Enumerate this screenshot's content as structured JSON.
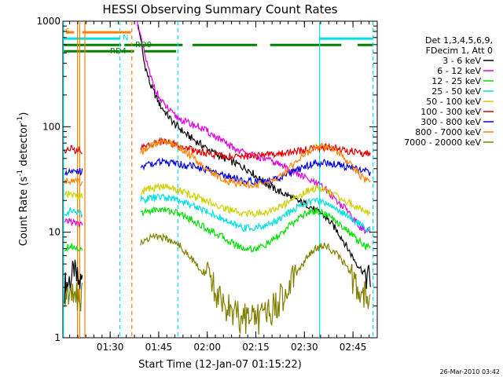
{
  "chart_data": {
    "type": "line",
    "title": "HESSI Observing Summary Count Rates",
    "xlabel": "Start Time (12-Jan-07 01:15:22)",
    "ylabel_main": "Count Rate (s",
    "ylabel_sup1": "-1",
    "ylabel_mid": " detector",
    "ylabel_sup2": "-1",
    "ylabel_end": ")",
    "footer": "26-Mar-2010 03:42",
    "x_scale": "time (minutes after 01:15:22)",
    "xlim": [
      0,
      97.1
    ],
    "y_scale": "log",
    "ylim": [
      1,
      1000
    ],
    "x_ticks": [
      {
        "label": "01:30",
        "value": 14.6
      },
      {
        "label": "01:45",
        "value": 29.6
      },
      {
        "label": "02:00",
        "value": 44.6
      },
      {
        "label": "02:15",
        "value": 59.6
      },
      {
        "label": "02:30",
        "value": 74.6
      },
      {
        "label": "02:45",
        "value": 89.6
      }
    ],
    "y_ticks": [
      {
        "label": "1",
        "value": 1
      },
      {
        "label": "10",
        "value": 10
      },
      {
        "label": "100",
        "value": 100
      },
      {
        "label": "1000",
        "value": 1000
      }
    ],
    "legend": {
      "placement": "right",
      "header": [
        "Det 1,3,4,5,6,9,",
        "FDecim 1, Att 0"
      ]
    },
    "series": [
      {
        "name": "3 - 6 keV",
        "color": "#000000",
        "segments": [
          {
            "x": [
              0.5,
              2,
              3.5,
              5,
              6
            ],
            "y": [
              3.0,
              3.5,
              4.0,
              3.2,
              3.5
            ]
          },
          {
            "x": [
              23,
              24,
              25,
              27,
              30,
              34,
              38,
              42,
              46,
              50,
              54,
              58,
              60,
              62,
              66,
              70,
              72,
              74,
              76,
              78,
              80,
              82,
              84,
              86,
              88,
              90,
              92,
              93.5,
              95
            ],
            "y": [
              950,
              700,
              420,
              250,
              160,
              110,
              85,
              70,
              58,
              50,
              44,
              38,
              33,
              30,
              25,
              22,
              20,
              19,
              18,
              16,
              15,
              13,
              11,
              9,
              7,
              5.5,
              4.5,
              4.0,
              3.5
            ]
          }
        ]
      },
      {
        "name": "6 - 12 keV",
        "color": "#e000e0",
        "segments": [
          {
            "x": [
              0.5,
              2,
              4,
              6
            ],
            "y": [
              12,
              13,
              12,
              12
            ]
          },
          {
            "x": [
              23,
              24,
              25,
              27,
              30,
              34,
              38,
              42,
              46,
              50,
              54,
              58,
              62,
              66,
              70,
              72,
              74,
              76,
              78,
              80,
              82,
              84,
              86,
              88,
              90,
              92,
              95
            ],
            "y": [
              1000,
              700,
              520,
              300,
              180,
              130,
              110,
              100,
              85,
              70,
              60,
              54,
              50,
              45,
              40,
              36,
              34,
              31,
              29,
              27,
              24,
              21,
              18,
              16,
              13,
              11,
              10
            ]
          }
        ]
      },
      {
        "name": "12 - 25 keV",
        "color": "#00e000",
        "segments": [
          {
            "x": [
              0.5,
              2,
              4,
              6
            ],
            "y": [
              7,
              7.5,
              7.2,
              7
            ]
          },
          {
            "x": [
              24,
              27,
              30,
              33,
              36,
              40,
              44,
              48,
              52,
              56,
              60,
              64,
              68,
              72,
              75,
              78,
              81,
              84,
              87,
              90,
              93,
              95
            ],
            "y": [
              15,
              16,
              16.5,
              16,
              15,
              13,
              11,
              9.5,
              8,
              7,
              7,
              8,
              10,
              13,
              15,
              16,
              15,
              13,
              11,
              9,
              7.5,
              7
            ]
          }
        ]
      },
      {
        "name": "25 - 50 keV",
        "color": "#00e0e0",
        "segments": [
          {
            "x": [
              0.5,
              2,
              4,
              6
            ],
            "y": [
              15,
              16,
              15.5,
              15
            ]
          },
          {
            "x": [
              24,
              27,
              30,
              33,
              36,
              40,
              44,
              48,
              52,
              56,
              60,
              64,
              68,
              72,
              75,
              78,
              81,
              84,
              87,
              90,
              93,
              95
            ],
            "y": [
              20,
              21,
              21.5,
              21,
              20,
              18,
              16,
              14,
              12,
              11,
              11,
              12,
              14,
              17,
              19,
              20,
              19,
              17,
              15,
              13,
              11,
              10.5
            ]
          }
        ]
      },
      {
        "name": "50 - 100 keV",
        "color": "#d0d000",
        "segments": [
          {
            "x": [
              0.5,
              2,
              4,
              6
            ],
            "y": [
              22,
              23,
              22,
              22
            ]
          },
          {
            "x": [
              24,
              27,
              30,
              33,
              36,
              40,
              44,
              48,
              52,
              56,
              60,
              64,
              68,
              72,
              75,
              78,
              81,
              84,
              87,
              90,
              93,
              95
            ],
            "y": [
              24,
              26,
              27,
              26.5,
              25,
              22,
              20,
              18,
              16,
              15,
              15,
              16,
              18,
              21,
              24,
              26,
              25,
              23,
              20,
              18,
              16,
              15
            ]
          }
        ]
      },
      {
        "name": "100 - 300 keV",
        "color": "#e00000",
        "segments": [
          {
            "x": [
              0.5,
              2,
              4,
              6
            ],
            "y": [
              58,
              62,
              60,
              60
            ]
          },
          {
            "x": [
              24,
              27,
              30,
              33,
              36,
              40,
              44,
              48,
              52,
              56,
              60,
              64,
              68,
              72,
              75,
              78,
              81,
              84,
              87,
              90,
              93,
              95
            ],
            "y": [
              62,
              68,
              72,
              70,
              66,
              60,
              56,
              54,
              52,
              52,
              53,
              54,
              56,
              58,
              60,
              62,
              64,
              63,
              60,
              58,
              56,
              55
            ]
          }
        ]
      },
      {
        "name": "300 - 800 keV",
        "color": "#0000e0",
        "segments": [
          {
            "x": [
              0.5,
              2,
              4,
              6
            ],
            "y": [
              37,
              39,
              38,
              38
            ]
          },
          {
            "x": [
              24,
              27,
              30,
              33,
              36,
              40,
              44,
              48,
              52,
              56,
              60,
              64,
              68,
              72,
              75,
              78,
              81,
              84,
              87,
              90,
              93,
              95
            ],
            "y": [
              42,
              44,
              46,
              45,
              44,
              42,
              40,
              36,
              33,
              31,
              30,
              31,
              34,
              38,
              42,
              45,
              46,
              44,
              42,
              40,
              38,
              37
            ]
          }
        ]
      },
      {
        "name": "800 - 7000 keV",
        "color": "#ff8000",
        "segments": [
          {
            "x": [
              0.5,
              2,
              4,
              6
            ],
            "y": [
              30,
              31,
              30,
              30
            ]
          },
          {
            "x": [
              24,
              27,
              30,
              33,
              36,
              40,
              44,
              48,
              52,
              56,
              60,
              64,
              68,
              72,
              75,
              78,
              81,
              84,
              87,
              90,
              93,
              95
            ],
            "y": [
              55,
              65,
              72,
              70,
              64,
              52,
              40,
              33,
              30,
              28,
              28,
              30,
              36,
              46,
              56,
              63,
              65,
              60,
              50,
              40,
              32,
              29
            ]
          }
        ]
      },
      {
        "name": "7000 - 20000 keV",
        "color": "#808000",
        "segments": [
          {
            "x": [
              0.5,
              2,
              4,
              6
            ],
            "y": [
              2.5,
              2.8,
              2.6,
              2.5
            ]
          },
          {
            "x": [
              24,
              27,
              30,
              33,
              36,
              40,
              44,
              48,
              52,
              56,
              60,
              64,
              68,
              72,
              75,
              78,
              81,
              84,
              87,
              90,
              93,
              95
            ],
            "y": [
              8,
              9,
              9,
              8.5,
              7.5,
              5.5,
              4,
              2.5,
              1.7,
              1.5,
              1.5,
              1.7,
              2.5,
              4,
              5.5,
              7,
              7.5,
              6.5,
              5,
              3.5,
              2.5,
              2
            ]
          }
        ]
      }
    ],
    "markers": [
      {
        "label": "S",
        "color": "#ff8000",
        "x": 1,
        "y_top": true
      },
      {
        "label": "N",
        "color": "#00e0e0",
        "x": 18
      },
      {
        "label": "RD0",
        "color": "#008000",
        "x": 24
      },
      {
        "label": "RD4",
        "color": "#008000",
        "x": 15
      }
    ],
    "vertical_lines": [
      {
        "x": 4.5,
        "color": "#ff8000",
        "style": "solid"
      },
      {
        "x": 5.2,
        "color": "#ff8000",
        "style": "solid"
      },
      {
        "x": 6.8,
        "color": "#ff8000",
        "style": "solid"
      },
      {
        "x": 0.2,
        "color": "#00e0e0",
        "style": "solid"
      },
      {
        "x": 17.6,
        "color": "#00e0e0",
        "style": "dashed"
      },
      {
        "x": 21.3,
        "color": "#ff8000",
        "style": "dashed"
      },
      {
        "x": 35.5,
        "color": "#00e0e0",
        "style": "dashed"
      },
      {
        "x": 79.3,
        "color": "#00e0e0",
        "style": "solid"
      },
      {
        "x": 95.8,
        "color": "#00e0e0",
        "style": "dashed"
      }
    ],
    "flag_bars": [
      {
        "color": "#ff8000",
        "y_frac": 0.035,
        "segments": [
          [
            1,
            3.5
          ],
          [
            6,
            21
          ]
        ]
      },
      {
        "color": "#00e0e0",
        "y_frac": 0.055,
        "segments": [
          [
            0,
            17.6
          ],
          [
            79.3,
            95.8
          ]
        ]
      },
      {
        "color": "#008000",
        "y_frac": 0.075,
        "segments": [
          [
            0,
            18
          ],
          [
            19,
            37
          ],
          [
            40,
            60
          ],
          [
            64,
            86
          ],
          [
            91,
            95.8
          ]
        ]
      },
      {
        "color": "#008000",
        "y_frac": 0.095,
        "segments": [
          [
            0,
            22
          ],
          [
            25,
            35
          ]
        ]
      }
    ]
  }
}
